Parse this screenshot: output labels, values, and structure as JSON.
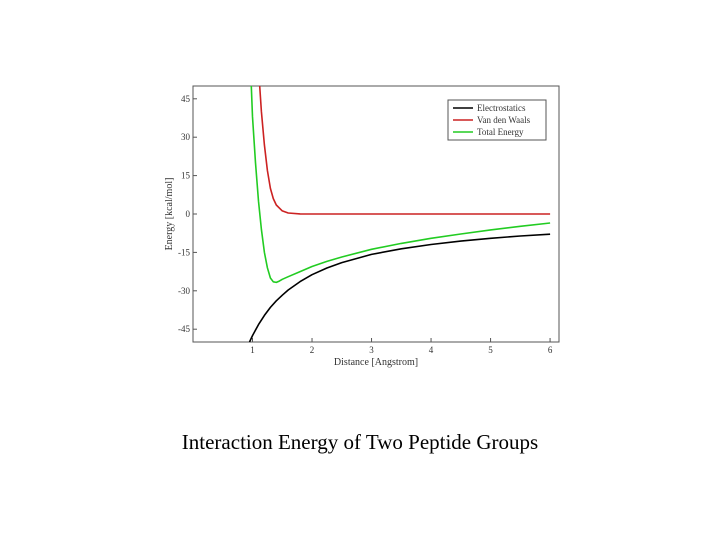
{
  "chart_data": {
    "type": "line",
    "xlabel": "Distance [Angstrom]",
    "ylabel": "Energy [kcal/mol]",
    "xlim": [
      0,
      6.15
    ],
    "ylim": [
      -50,
      50
    ],
    "xticks": [
      1,
      2,
      3,
      4,
      5,
      6
    ],
    "yticks": [
      -45,
      -30,
      -15,
      0,
      15,
      30,
      45
    ],
    "grid": false,
    "legend_position": "top-right",
    "series": [
      {
        "name": "Electrostatics",
        "color": "#000000",
        "points": [
          [
            0.95,
            -50
          ],
          [
            1.0,
            -47.5
          ],
          [
            1.1,
            -43.2
          ],
          [
            1.2,
            -39.6
          ],
          [
            1.3,
            -36.5
          ],
          [
            1.4,
            -33.9
          ],
          [
            1.5,
            -31.7
          ],
          [
            1.6,
            -29.7
          ],
          [
            1.8,
            -26.4
          ],
          [
            2.0,
            -23.7
          ],
          [
            2.25,
            -21.1
          ],
          [
            2.5,
            -19.0
          ],
          [
            3.0,
            -15.8
          ],
          [
            3.5,
            -13.6
          ],
          [
            4.0,
            -11.9
          ],
          [
            4.5,
            -10.6
          ],
          [
            5.0,
            -9.5
          ],
          [
            5.5,
            -8.6
          ],
          [
            6.0,
            -7.9
          ]
        ]
      },
      {
        "name": "Van den Waals",
        "color": "#cc2222",
        "points": [
          [
            1.12,
            50
          ],
          [
            1.15,
            40
          ],
          [
            1.2,
            27
          ],
          [
            1.25,
            17
          ],
          [
            1.3,
            10
          ],
          [
            1.35,
            6
          ],
          [
            1.4,
            3.5
          ],
          [
            1.5,
            1.2
          ],
          [
            1.6,
            0.4
          ],
          [
            1.8,
            0.05
          ],
          [
            2.0,
            0
          ],
          [
            3.0,
            0
          ],
          [
            4.0,
            0
          ],
          [
            5.0,
            0
          ],
          [
            6.0,
            0
          ]
        ]
      },
      {
        "name": "Total Energy",
        "color": "#22cc22",
        "points": [
          [
            0.98,
            50
          ],
          [
            1.0,
            38
          ],
          [
            1.05,
            20
          ],
          [
            1.1,
            5
          ],
          [
            1.15,
            -6
          ],
          [
            1.2,
            -15
          ],
          [
            1.25,
            -21
          ],
          [
            1.3,
            -25
          ],
          [
            1.35,
            -26.5
          ],
          [
            1.4,
            -26.7
          ],
          [
            1.45,
            -26.2
          ],
          [
            1.5,
            -25.5
          ],
          [
            1.6,
            -24.5
          ],
          [
            1.8,
            -22.5
          ],
          [
            2.0,
            -20.5
          ],
          [
            2.25,
            -18.5
          ],
          [
            2.5,
            -16.8
          ],
          [
            3.0,
            -13.8
          ],
          [
            3.5,
            -11.5
          ],
          [
            4.0,
            -9.5
          ],
          [
            4.5,
            -7.8
          ],
          [
            5.0,
            -6.2
          ],
          [
            5.5,
            -4.8
          ],
          [
            6.0,
            -3.5
          ]
        ]
      }
    ]
  },
  "caption": "Interaction Energy of Two Peptide Groups"
}
